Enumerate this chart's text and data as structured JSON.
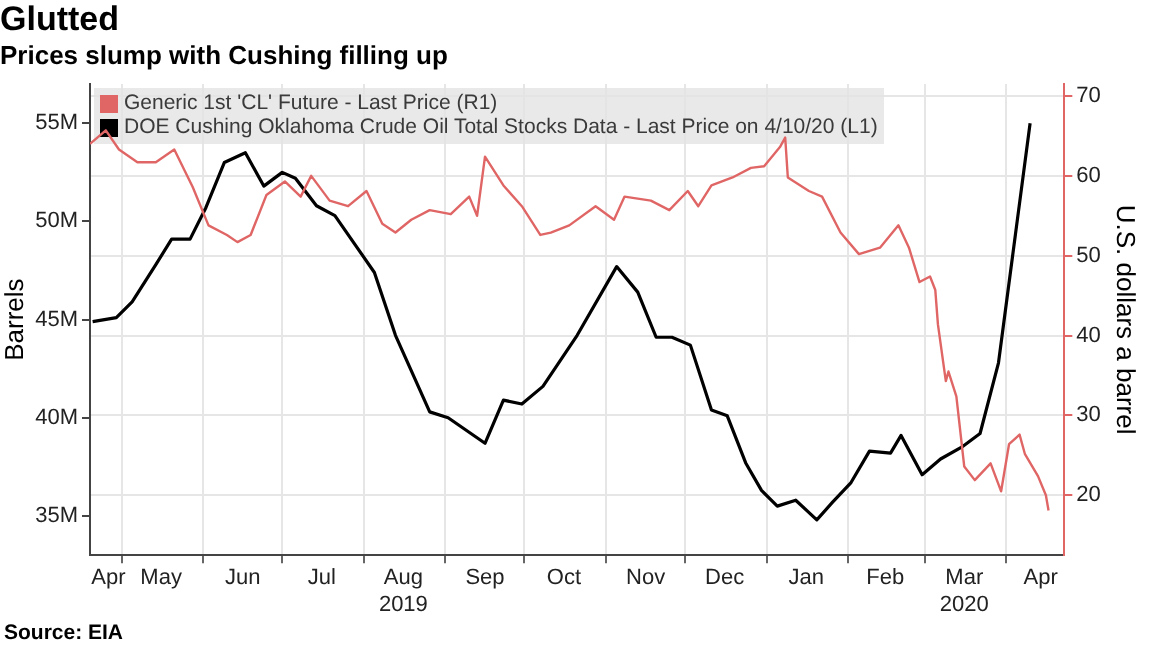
{
  "chart_data": {
    "type": "line",
    "title": "Glutted",
    "subtitle": "Prices slump with Cushing filling up",
    "ylabel": "Barrels",
    "y2label": "U.S. dollars a barrel",
    "annotations": [
      "Source: EIA"
    ],
    "xlim": [
      "2019-04-19",
      "2020-04-23"
    ],
    "xticks": [
      {
        "value": "2019-04-26",
        "label": "Apr"
      },
      {
        "value": "2019-05-01",
        "label": null
      },
      {
        "value": "2019-05-16",
        "label": "May"
      },
      {
        "value": "2019-06-01",
        "label": null
      },
      {
        "value": "2019-06-16",
        "label": "Jun"
      },
      {
        "value": "2019-07-01",
        "label": null
      },
      {
        "value": "2019-07-16",
        "label": "Jul"
      },
      {
        "value": "2019-08-01",
        "label": null
      },
      {
        "value": "2019-08-16",
        "label": "Aug\n2019"
      },
      {
        "value": "2019-09-01",
        "label": null
      },
      {
        "value": "2019-09-16",
        "label": "Sep"
      },
      {
        "value": "2019-10-01",
        "label": null
      },
      {
        "value": "2019-10-16",
        "label": "Oct"
      },
      {
        "value": "2019-11-01",
        "label": null
      },
      {
        "value": "2019-11-16",
        "label": "Nov"
      },
      {
        "value": "2019-12-01",
        "label": null
      },
      {
        "value": "2019-12-16",
        "label": "Dec"
      },
      {
        "value": "2020-01-01",
        "label": null
      },
      {
        "value": "2020-01-16",
        "label": "Jan"
      },
      {
        "value": "2020-02-01",
        "label": null
      },
      {
        "value": "2020-02-15",
        "label": "Feb"
      },
      {
        "value": "2020-03-01",
        "label": null
      },
      {
        "value": "2020-03-16",
        "label": "Mar\n2020"
      },
      {
        "value": "2020-04-01",
        "label": null
      },
      {
        "value": "2020-04-14",
        "label": "Apr"
      }
    ],
    "ylim": [
      33,
      57
    ],
    "yticks": [
      {
        "value": 35,
        "label": "35M"
      },
      {
        "value": 40,
        "label": "40M"
      },
      {
        "value": 45,
        "label": "45M"
      },
      {
        "value": 50,
        "label": "50M"
      },
      {
        "value": 55,
        "label": "55M"
      }
    ],
    "y2lim": [
      12.5,
      71.5
    ],
    "y2ticks": [
      20,
      30,
      40,
      50,
      60,
      70
    ],
    "grid": true,
    "legend": "top left",
    "line_style": "solid",
    "series": [
      {
        "name": "Generic 1st 'CL' Future - Last Price (R1)",
        "color": "#e06666",
        "axis": "y2",
        "x": [
          "2019-04-19",
          "2019-04-25",
          "2019-04-30",
          "2019-05-07",
          "2019-05-14",
          "2019-05-21",
          "2019-05-28",
          "2019-06-03",
          "2019-06-10",
          "2019-06-14",
          "2019-06-19",
          "2019-06-25",
          "2019-07-02",
          "2019-07-08",
          "2019-07-12",
          "2019-07-19",
          "2019-07-26",
          "2019-08-02",
          "2019-08-08",
          "2019-08-13",
          "2019-08-19",
          "2019-08-26",
          "2019-09-03",
          "2019-09-10",
          "2019-09-13",
          "2019-09-16",
          "2019-09-23",
          "2019-09-30",
          "2019-10-07",
          "2019-10-11",
          "2019-10-18",
          "2019-10-28",
          "2019-11-04",
          "2019-11-08",
          "2019-11-18",
          "2019-11-25",
          "2019-12-02",
          "2019-12-06",
          "2019-12-11",
          "2019-12-19",
          "2019-12-26",
          "2019-12-31",
          "2020-01-06",
          "2020-01-08",
          "2020-01-09",
          "2020-01-17",
          "2020-01-22",
          "2020-01-29",
          "2020-02-05",
          "2020-02-13",
          "2020-02-20",
          "2020-02-24",
          "2020-02-28",
          "2020-03-03",
          "2020-03-05",
          "2020-03-06",
          "2020-03-09",
          "2020-03-10",
          "2020-03-13",
          "2020-03-16",
          "2020-03-20",
          "2020-03-26",
          "2020-03-30",
          "2020-04-02",
          "2020-04-06",
          "2020-04-08",
          "2020-04-13",
          "2020-04-16",
          "2020-04-17"
        ],
        "values": [
          64.0,
          65.7,
          63.3,
          61.7,
          61.7,
          63.3,
          58.6,
          53.8,
          52.6,
          51.7,
          52.6,
          57.6,
          59.3,
          57.4,
          60.0,
          56.9,
          56.2,
          58.1,
          54.0,
          52.9,
          54.5,
          55.7,
          55.2,
          57.4,
          55.0,
          62.4,
          58.8,
          56.2,
          52.6,
          52.9,
          53.8,
          56.2,
          54.5,
          57.4,
          56.9,
          55.7,
          58.1,
          56.2,
          58.8,
          59.8,
          61.0,
          61.2,
          63.6,
          64.8,
          59.8,
          58.1,
          57.4,
          52.9,
          50.2,
          51.0,
          53.8,
          51.0,
          46.7,
          47.4,
          45.7,
          41.4,
          34.3,
          35.5,
          32.4,
          23.6,
          21.9,
          24.0,
          20.5,
          26.4,
          27.6,
          25.2,
          22.4,
          20.0,
          18.1
        ]
      },
      {
        "name": "DOE Cushing Oklahoma Crude Oil Total Stocks Data - Last Price on 4/10/20 (L1)",
        "color": "#000000",
        "x": [
          "2019-04-20",
          "2019-04-29",
          "2019-05-05",
          "2019-05-14",
          "2019-05-20",
          "2019-05-27",
          "2019-06-02",
          "2019-06-09",
          "2019-06-17",
          "2019-06-24",
          "2019-07-01",
          "2019-07-06",
          "2019-07-14",
          "2019-07-21",
          "2019-08-05",
          "2019-08-13",
          "2019-08-26",
          "2019-09-02",
          "2019-09-16",
          "2019-09-23",
          "2019-09-30",
          "2019-10-08",
          "2019-10-21",
          "2019-11-05",
          "2019-11-13",
          "2019-11-20",
          "2019-11-26",
          "2019-12-03",
          "2019-12-11",
          "2019-12-17",
          "2019-12-24",
          "2019-12-30",
          "2020-01-05",
          "2020-01-12",
          "2020-01-20",
          "2020-01-26",
          "2020-02-02",
          "2020-02-09",
          "2020-02-17",
          "2020-02-21",
          "2020-02-29",
          "2020-03-07",
          "2020-03-15",
          "2020-03-22",
          "2020-03-29",
          "2020-04-10"
        ],
        "values": [
          44.9,
          45.1,
          45.9,
          47.8,
          49.1,
          49.1,
          50.7,
          53.0,
          53.5,
          51.8,
          52.5,
          52.2,
          50.8,
          50.3,
          47.4,
          44.2,
          40.3,
          40.0,
          38.7,
          40.9,
          40.7,
          41.6,
          44.2,
          47.7,
          46.4,
          44.1,
          44.1,
          43.7,
          40.4,
          40.1,
          37.7,
          36.3,
          35.5,
          35.8,
          34.8,
          35.7,
          36.7,
          38.3,
          38.2,
          39.1,
          37.1,
          37.9,
          38.5,
          39.2,
          42.8,
          55.0
        ]
      }
    ]
  }
}
